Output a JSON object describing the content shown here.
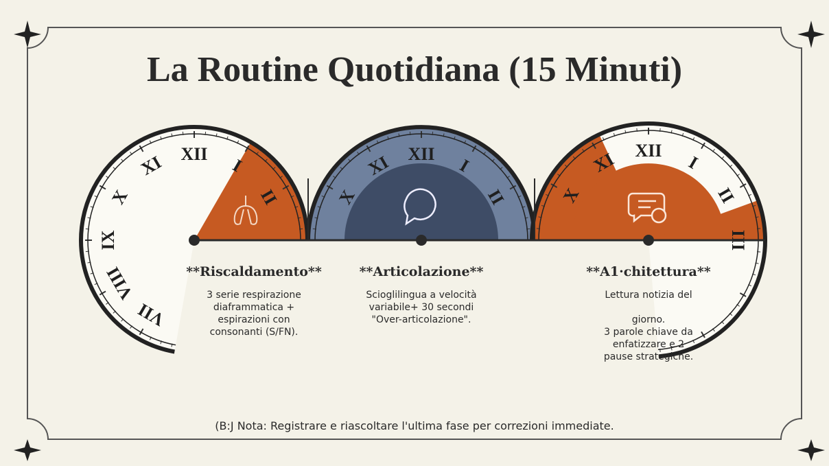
{
  "title": "La Routine Quotidiana (15 Minuti)",
  "clocks": [
    {
      "numerals": [
        "XII",
        "XI",
        "X",
        "IX",
        "VIII",
        "VII",
        "I",
        "II"
      ]
    },
    {
      "numerals": [
        "XII",
        "XI",
        "X",
        "I",
        "II"
      ]
    },
    {
      "numerals": [
        "XII",
        "XI",
        "X",
        "I",
        "II",
        "III"
      ]
    }
  ],
  "sections": [
    {
      "title": "**Riscaldamento**",
      "lines": [
        "3 serie respirazione",
        "diaframmatica +",
        "espirazioni con",
        "consonanti (S/FN)."
      ]
    },
    {
      "title": "**Articolazione**",
      "lines": [
        "Scioglilingua a velocità",
        "variabile+  30 secondi",
        "\"Over-articolazione\"."
      ]
    },
    {
      "title": "**A1·chitettura**",
      "lines": [
        "Lettura notizia del",
        "",
        "giorno.",
        "3 parole chiave da",
        "enfatizzare e 2",
        "pause strategiche."
      ]
    }
  ],
  "note": "(B:J Nota: Registrare e riascoltare l'ultima fase per correzioni immediate."
}
